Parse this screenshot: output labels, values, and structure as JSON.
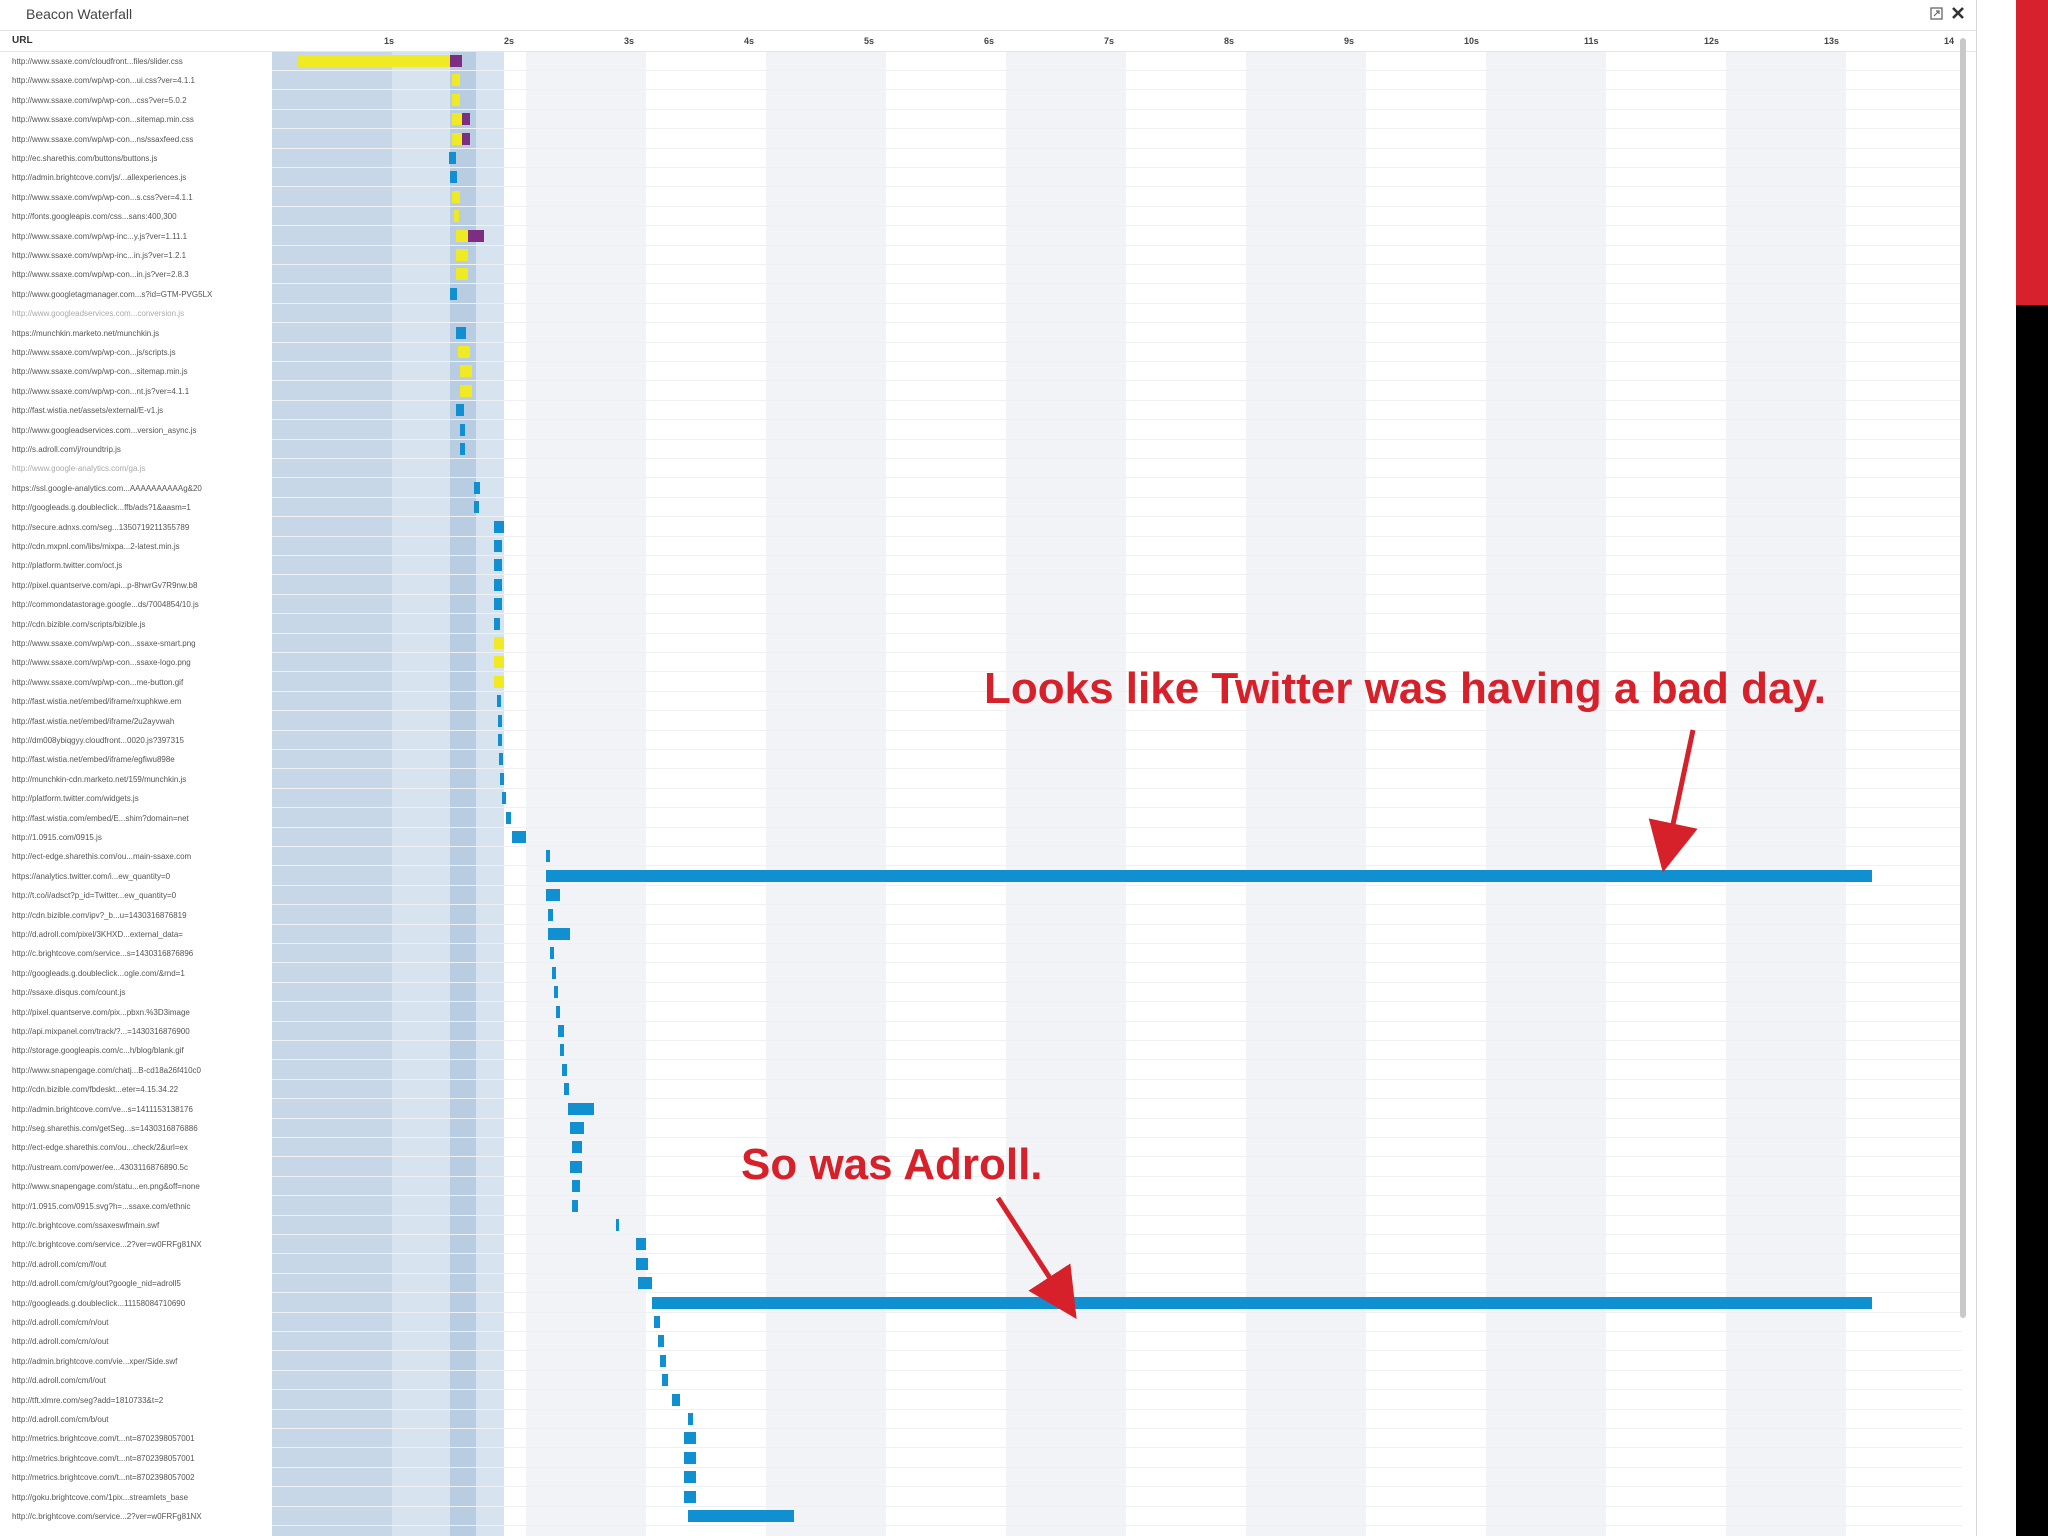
{
  "window": {
    "title": "Beacon Waterfall"
  },
  "header": {
    "url_label": "URL",
    "ticks": [
      "1s",
      "2s",
      "3s",
      "4s",
      "5s",
      "6s",
      "7s",
      "8s",
      "9s",
      "10s",
      "11s",
      "12s",
      "13s",
      "14"
    ]
  },
  "rows": [
    "http://www.ssaxe.com/cloudfront...files/slider.css",
    "http://www.ssaxe.com/wp/wp-con...ui.css?ver=4.1.1",
    "http://www.ssaxe.com/wp/wp-con...css?ver=5.0.2",
    "http://www.ssaxe.com/wp/wp-con...sitemap.min.css",
    "http://www.ssaxe.com/wp/wp-con...ns/ssaxfeed.css",
    "http://ec.sharethis.com/buttons/buttons.js",
    "http://admin.brightcove.com/js/...allexperiences.js",
    "http://www.ssaxe.com/wp/wp-con...s.css?ver=4.1.1",
    "http://fonts.googleapis.com/css...sans:400,300",
    "http://www.ssaxe.com/wp/wp-inc...y.js?ver=1.11.1",
    "http://www.ssaxe.com/wp/wp-inc...in.js?ver=1.2.1",
    "http://www.ssaxe.com/wp/wp-con...in.js?ver=2.8.3",
    "http://www.googletagmanager.com...s?id=GTM-PVG5LX",
    "http://www.googleadservices.com...conversion.js",
    "https://munchkin.marketo.net/munchkin.js",
    "http://www.ssaxe.com/wp/wp-con...js/scripts.js",
    "http://www.ssaxe.com/wp/wp-con...sitemap.min.js",
    "http://www.ssaxe.com/wp/wp-con...nt.js?ver=4.1.1",
    "http://fast.wistia.net/assets/external/E-v1.js",
    "http://www.googleadservices.com...version_async.js",
    "http://s.adroll.com/j/roundtrip.js",
    "http://www.google-analytics.com/ga.js",
    "https://ssl.google-analytics.com...AAAAAAAAAAg&20",
    "http://googleads.g.doubleclick...ffb/ads?1&aasm=1",
    "http://secure.adnxs.com/seg...1350719211355789",
    "http://cdn.mxpnl.com/libs/mixpa...2-latest.min.js",
    "http://platform.twitter.com/oct.js",
    "http://pixel.quantserve.com/api...p-8hwrGv7R9nw.b8",
    "http://commondatastorage.google...ds/7004854/10.js",
    "http://cdn.bizible.com/scripts/bizible.js",
    "http://www.ssaxe.com/wp/wp-con...ssaxe-smart.png",
    "http://www.ssaxe.com/wp/wp-con...ssaxe-logo.png",
    "http://www.ssaxe.com/wp/wp-con...me-button.gif",
    "http://fast.wistia.net/embed/iframe/rxuphkwe.em",
    "http://fast.wistia.net/embed/iframe/2u2ayvwah",
    "http://dm008ybiqgyy.cloudfront...0020.js?397315",
    "http://fast.wistia.net/embed/iframe/egfiwu898e",
    "http://munchkin-cdn.marketo.net/159/munchkin.js",
    "http://platform.twitter.com/widgets.js",
    "http://fast.wistia.com/embed/E...shim?domain=net",
    "http://1.0915.com/0915.js",
    "http://ect-edge.sharethis.com/ou...main-ssaxe.com",
    "https://analytics.twitter.com/i...ew_quantity=0",
    "http://t.co/i/adsct?p_id=Twitter...ew_quantity=0",
    "http://cdn.bizible.com/ipv?_b...u=1430316876819",
    "http://d.adroll.com/pixel/3KHXD...external_data=",
    "http://c.brightcove.com/service...s=1430316876896",
    "http://googleads.g.doubleclick...ogle.com/&rnd=1",
    "http://ssaxe.disqus.com/count.js",
    "http://pixel.quantserve.com/pix...pbxn.%3D3image",
    "http://api.mixpanel.com/track/?...=1430316876900",
    "http://storage.googleapis.com/c...h/blog/blank.gif",
    "http://www.snapengage.com/chatj...B-cd18a26f410c0",
    "http://cdn.bizible.com/fbdeskt...eter=4.15.34.22",
    "http://admin.brightcove.com/ve...s=1411153138176",
    "http://seg.sharethis.com/getSeg...s=1430316876886",
    "http://ect-edge.sharethis.com/ou...check/2&url=ex",
    "http://ustream.com/power/ee...4303116876890.5c",
    "http://www.snapengage.com/statu...en.png&off=none",
    "http://1.0915.com/0915.svg?h=...ssaxe.com/ethnic",
    "http://c.brightcove.com/ssaxeswfmain.swf",
    "http://c.brightcove.com/service...2?ver=w0FRFg81NX",
    "http://d.adroll.com/cm/f/out",
    "http://d.adroll.com/cm/g/out?google_nid=adroll5",
    "http://googleads.g.doubleclick...11158084710690",
    "http://d.adroll.com/cm/n/out",
    "http://d.adroll.com/cm/o/out",
    "http://admin.brightcove.com/vie...xper/Side.swf",
    "http://d.adroll.com/cm/l/out",
    "http://tft.xlmre.com/seg?add=1810733&t=2",
    "http://d.adroll.com/cm/b/out",
    "http://metrics.brightcove.com/t...nt=8702398057001",
    "http://metrics.brightcove.com/t...nt=8702398057001",
    "http://metrics.brightcove.com/t...nt=8702398057002",
    "http://goku.brightcove.com/1pix...streamlets_base",
    "http://c.brightcove.com/service...2?ver=w0FRFg81NX"
  ],
  "annotations": {
    "twitter": "Looks like Twitter was having a bad day.",
    "adroll": "So was Adroll."
  },
  "colors": {
    "blocking": "#f0ea24",
    "connect": "#7d2e83",
    "receive": "#1090d0",
    "annotation": "#d6202a",
    "band_dark": "#c7d7e8",
    "band_light": "#d7e4f0",
    "stripe": "#f2f3f6"
  }
}
